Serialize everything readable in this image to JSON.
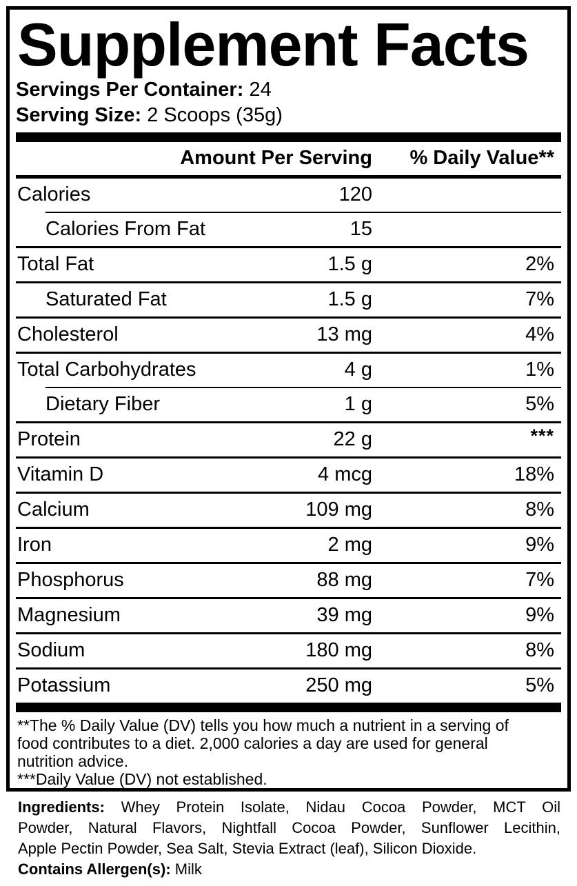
{
  "title": "Supplement Facts",
  "serving_info": {
    "servings_label": "Servings Per Container:",
    "servings_value": "24",
    "size_label": "Serving Size:",
    "size_value": "2 Scoops (35g)"
  },
  "table": {
    "amount_header": "Amount Per Serving",
    "dv_header": "% Daily Value**",
    "rows": [
      {
        "label": "Calories",
        "amount": "120",
        "dv": "",
        "indent": false,
        "sep_above": "none"
      },
      {
        "label": "Calories From Fat",
        "amount": "15",
        "dv": "",
        "indent": true,
        "sep_above": "sub"
      },
      {
        "label": "Total Fat",
        "amount": "1.5 g",
        "dv": "2%",
        "indent": false,
        "sep_above": "full"
      },
      {
        "label": "Saturated Fat",
        "amount": "1.5 g",
        "dv": "7%",
        "indent": true,
        "sep_above": "full"
      },
      {
        "label": "Cholesterol",
        "amount": "13 mg",
        "dv": "4%",
        "indent": false,
        "sep_above": "full"
      },
      {
        "label": "Total Carbohydrates",
        "amount": "4 g",
        "dv": "1%",
        "indent": false,
        "sep_above": "full"
      },
      {
        "label": "Dietary Fiber",
        "amount": "1 g",
        "dv": "5%",
        "indent": true,
        "sep_above": "sub"
      },
      {
        "label": "Protein",
        "amount": "22 g",
        "dv": "***",
        "indent": false,
        "sep_above": "full",
        "dv_superscript": true
      },
      {
        "label": "Vitamin D",
        "amount": "4 mcg",
        "dv": "18%",
        "indent": false,
        "sep_above": "full"
      },
      {
        "label": "Calcium",
        "amount": "109 mg",
        "dv": "8%",
        "indent": false,
        "sep_above": "full"
      },
      {
        "label": "Iron",
        "amount": "2 mg",
        "dv": "9%",
        "indent": false,
        "sep_above": "full"
      },
      {
        "label": "Phosphorus",
        "amount": "88 mg",
        "dv": "7%",
        "indent": false,
        "sep_above": "full"
      },
      {
        "label": "Magnesium",
        "amount": "39 mg",
        "dv": "9%",
        "indent": false,
        "sep_above": "full"
      },
      {
        "label": "Sodium",
        "amount": "180 mg",
        "dv": "8%",
        "indent": false,
        "sep_above": "full"
      },
      {
        "label": "Potassium",
        "amount": "250 mg",
        "dv": "5%",
        "indent": false,
        "sep_above": "full"
      }
    ]
  },
  "footnote": {
    "lines": [
      "**The % Daily Value (DV) tells you how much a nutrient in a serving of",
      "food contributes to a diet. 2,000 calories a day are used for general",
      "nutrition advice.",
      "***Daily Value (DV) not established."
    ]
  },
  "ingredients": {
    "label": "Ingredients:",
    "line1_rest": "Whey Protein Isolate, Nidau Cocoa Powder, MCT Oil",
    "line2": "Powder, Natural Flavors, Nightfall Cocoa Powder, Sunflower Lecithin,",
    "line3": "Apple Pectin Powder, Sea Salt, Stevia Extract (leaf), Silicon Dioxide."
  },
  "allergen": {
    "label": "Contains Allergen(s):",
    "value": "Milk"
  },
  "colors": {
    "ink": "#000000",
    "background": "#ffffff"
  }
}
